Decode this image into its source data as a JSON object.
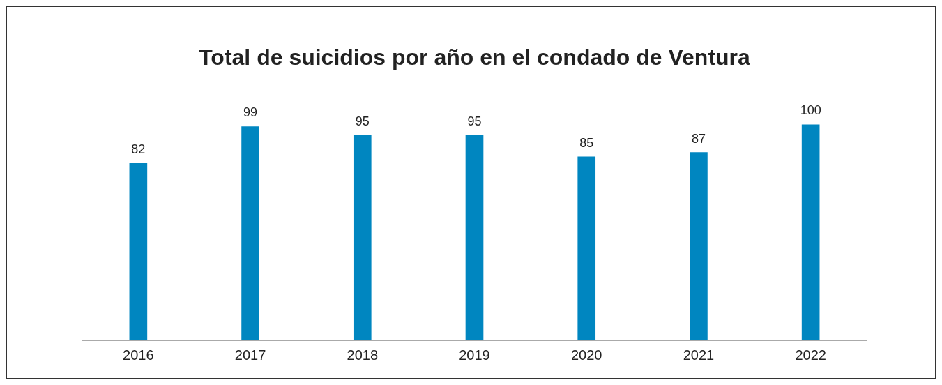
{
  "chart_data": {
    "type": "bar",
    "title": "Total de suicidios por año en el condado de Ventura",
    "categories": [
      "2016",
      "2017",
      "2018",
      "2019",
      "2020",
      "2021",
      "2022"
    ],
    "values": [
      82,
      99,
      95,
      95,
      85,
      87,
      100
    ],
    "color": "#0086c0",
    "data_labels": true,
    "grid": false,
    "legend": false
  }
}
